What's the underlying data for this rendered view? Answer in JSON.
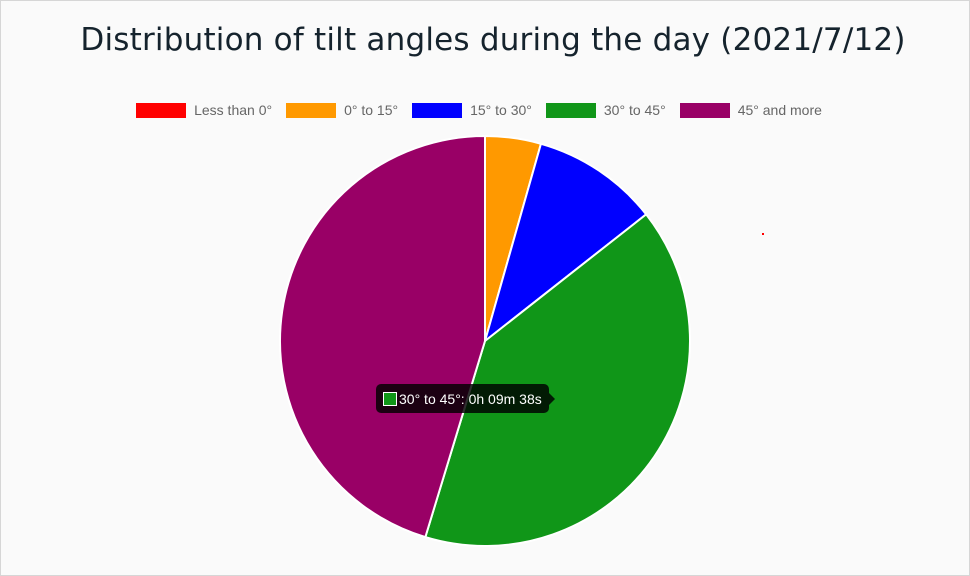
{
  "chart_data": {
    "type": "pie",
    "title": "Distribution of tilt angles during the day (2021/7/12)",
    "legend_position": "top",
    "categories": [
      "Less than 0°",
      "0° to 15°",
      "15° to 30°",
      "30° to 45°",
      "45° and more"
    ],
    "values": [
      0.0,
      4.4,
      10.0,
      40.3,
      45.3
    ],
    "colors": [
      "#ff0000",
      "#ff9900",
      "#0000ff",
      "#109618",
      "#990066"
    ]
  },
  "tooltip": {
    "label": "30° to 45°: 0h 09m 38s",
    "color": "#109618"
  }
}
